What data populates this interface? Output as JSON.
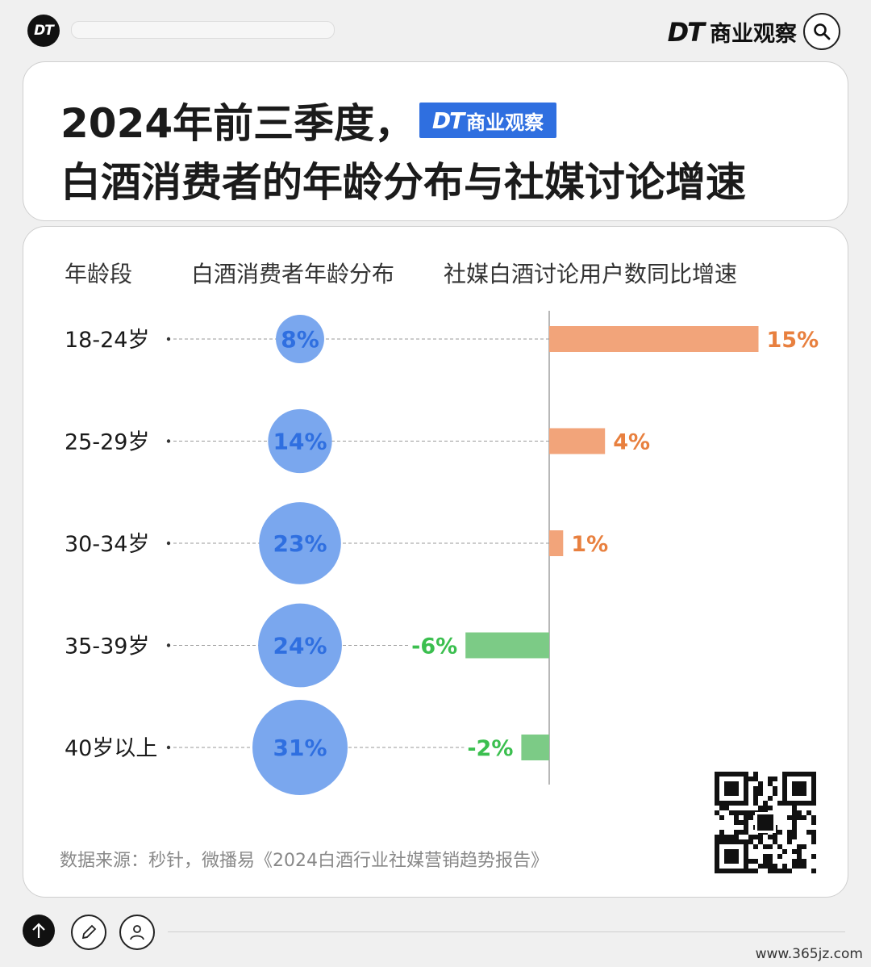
{
  "header": {
    "logo_text": "DT",
    "brand_name": "商业观察",
    "brand_dt": "DT"
  },
  "title": {
    "line1": "2024年前三季度，",
    "line2": "白酒消费者的年龄分布与社媒讨论增速",
    "badge_dt": "DT",
    "badge_text": "商业观察"
  },
  "columns": {
    "age": "年龄段",
    "distribution": "白酒消费者年龄分布",
    "growth": "社媒白酒讨论用户数同比增速"
  },
  "chart_data": {
    "type": "table",
    "categories": [
      "18-24岁",
      "25-29岁",
      "30-34岁",
      "35-39岁",
      "40岁以上"
    ],
    "series": [
      {
        "name": "白酒消费者年龄分布",
        "values": [
          8,
          14,
          23,
          24,
          31
        ],
        "labels": [
          "8%",
          "14%",
          "23%",
          "24%",
          "31%"
        ],
        "color": "#7aa7ee"
      },
      {
        "name": "社媒白酒讨论用户数同比增速",
        "values": [
          15,
          4,
          1,
          -6,
          -2
        ],
        "labels": [
          "15%",
          "4%",
          "1%",
          "-6%",
          "-2%"
        ],
        "positive_color": "#f2a47a",
        "negative_color": "#7ccb86"
      }
    ],
    "value_label_colors": {
      "distribution": "#2f6fe0",
      "positive": "#e8803f",
      "negative": "#3bbf4f"
    }
  },
  "footer": {
    "source": "数据来源：秒针，微播易《2024白酒行业社媒营销趋势报告》",
    "watermark": "www.365jz.com"
  },
  "icons": {
    "search": "search-icon",
    "up": "arrow-up-icon",
    "edit": "pencil-icon",
    "user": "user-icon",
    "qr": "qr-code-icon"
  }
}
